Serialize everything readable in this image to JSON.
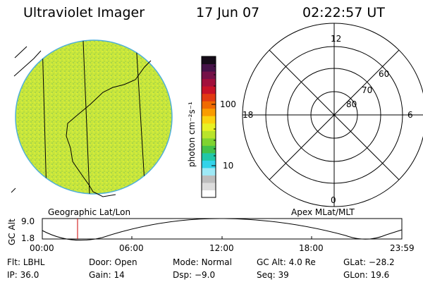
{
  "header": {
    "title": "Ultraviolet Imager",
    "date": "17 Jun 07",
    "time": "02:22:57 UT"
  },
  "colorbar": {
    "unit_label": "photon cm⁻²s⁻¹",
    "ticks": [
      "100",
      "10"
    ],
    "colors": [
      "#ffffff",
      "#dcdcdc",
      "#bdbdbd",
      "#9ee9f6",
      "#33d3ea",
      "#21c7a8",
      "#43c24a",
      "#7fd330",
      "#b9e42a",
      "#e8f124",
      "#fbd20f",
      "#fa9c00",
      "#f06a00",
      "#e23a12",
      "#c81228",
      "#a20f3c",
      "#751248",
      "#451248",
      "#150b18"
    ]
  },
  "left_panel": {
    "caption": "Geographic Lat/Lon",
    "disk_color": "#c6e63a"
  },
  "polar_plot": {
    "caption": "Apex MLat/MLT",
    "mlt_labels": {
      "top": "12",
      "left": "18",
      "right": "6",
      "bottom": "0"
    },
    "lat_labels": [
      "60",
      "70",
      "80"
    ]
  },
  "altitude_strip": {
    "ylabel": "GC Alt",
    "y_ticks": [
      "9.0",
      "1.8"
    ],
    "x_ticks": [
      "00:00",
      "06:00",
      "12:00",
      "18:00",
      "23:59"
    ],
    "marker_color": "#cc0000"
  },
  "info": {
    "row1": [
      {
        "label": "Flt:",
        "value": "LBHL"
      },
      {
        "label": "Door:",
        "value": "Open"
      },
      {
        "label": "Mode:",
        "value": "Normal"
      },
      {
        "label": "GC Alt:",
        "value": "4.0 Re"
      },
      {
        "label": "GLat:",
        "value": "−28.2"
      }
    ],
    "row2": [
      {
        "label": "IP:",
        "value": "36.0"
      },
      {
        "label": "Gain:",
        "value": "14"
      },
      {
        "label": "Dsp:",
        "value": "−9.0"
      },
      {
        "label": "Seq:",
        "value": "39"
      },
      {
        "label": "GLon:",
        "value": "19.6"
      }
    ]
  }
}
